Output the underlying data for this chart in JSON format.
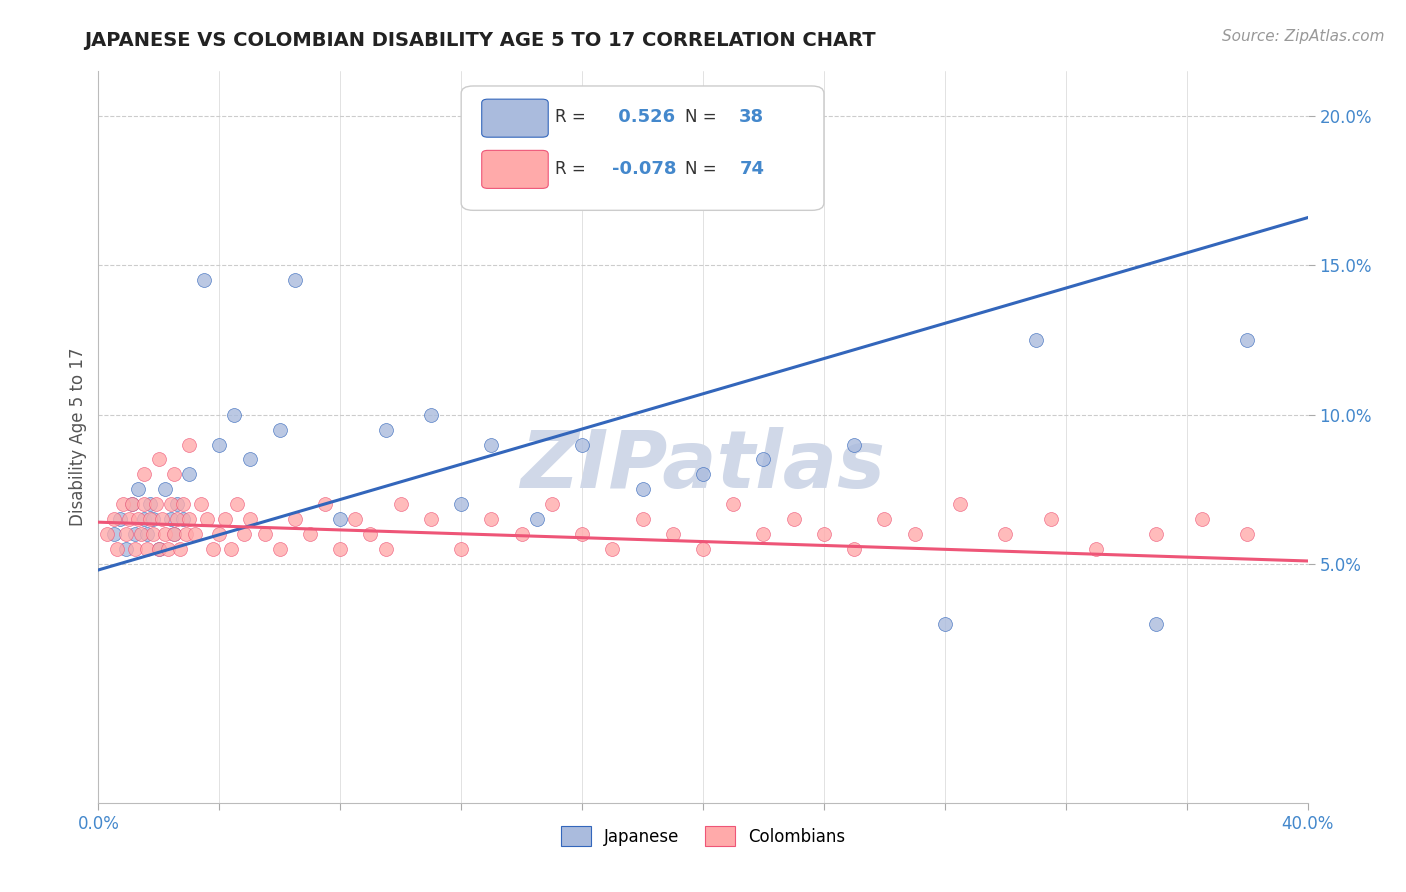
{
  "title": "JAPANESE VS COLOMBIAN DISABILITY AGE 5 TO 17 CORRELATION CHART",
  "source": "Source: ZipAtlas.com",
  "ylabel": "Disability Age 5 to 17",
  "xlim": [
    0.0,
    0.4
  ],
  "ylim": [
    -0.03,
    0.215
  ],
  "xticks": [
    0.0,
    0.04,
    0.08,
    0.12,
    0.16,
    0.2,
    0.24,
    0.28,
    0.32,
    0.36,
    0.4
  ],
  "ytick_positions": [
    0.05,
    0.1,
    0.15,
    0.2
  ],
  "ytick_labels": [
    "5.0%",
    "10.0%",
    "15.0%",
    "20.0%"
  ],
  "legend_r1": " 0.526",
  "legend_n1": "38",
  "legend_r2": "-0.078",
  "legend_n2": "74",
  "blue_scatter_color": "#aabbdd",
  "pink_scatter_color": "#ffaaaa",
  "blue_line_color": "#3366bb",
  "pink_line_color": "#ee5577",
  "watermark_text": "ZIPatlas",
  "watermark_color": "#d0d8e8",
  "japanese_x": [
    0.005,
    0.007,
    0.009,
    0.011,
    0.012,
    0.013,
    0.015,
    0.016,
    0.017,
    0.018,
    0.02,
    0.022,
    0.024,
    0.025,
    0.026,
    0.028,
    0.03,
    0.035,
    0.04,
    0.045,
    0.05,
    0.06,
    0.065,
    0.08,
    0.095,
    0.11,
    0.12,
    0.13,
    0.145,
    0.16,
    0.18,
    0.2,
    0.22,
    0.25,
    0.28,
    0.31,
    0.35,
    0.38
  ],
  "japanese_y": [
    0.06,
    0.065,
    0.055,
    0.07,
    0.06,
    0.075,
    0.065,
    0.06,
    0.07,
    0.065,
    0.055,
    0.075,
    0.065,
    0.06,
    0.07,
    0.065,
    0.08,
    0.145,
    0.09,
    0.1,
    0.085,
    0.095,
    0.145,
    0.065,
    0.095,
    0.1,
    0.07,
    0.09,
    0.065,
    0.09,
    0.075,
    0.08,
    0.085,
    0.09,
    0.03,
    0.125,
    0.03,
    0.125
  ],
  "colombian_x": [
    0.003,
    0.005,
    0.006,
    0.008,
    0.009,
    0.01,
    0.011,
    0.012,
    0.013,
    0.014,
    0.015,
    0.016,
    0.017,
    0.018,
    0.019,
    0.02,
    0.021,
    0.022,
    0.023,
    0.024,
    0.025,
    0.026,
    0.027,
    0.028,
    0.029,
    0.03,
    0.032,
    0.034,
    0.036,
    0.038,
    0.04,
    0.042,
    0.044,
    0.046,
    0.048,
    0.05,
    0.055,
    0.06,
    0.065,
    0.07,
    0.075,
    0.08,
    0.085,
    0.09,
    0.095,
    0.1,
    0.11,
    0.12,
    0.13,
    0.14,
    0.15,
    0.16,
    0.17,
    0.18,
    0.19,
    0.2,
    0.21,
    0.22,
    0.23,
    0.24,
    0.25,
    0.26,
    0.27,
    0.285,
    0.3,
    0.315,
    0.33,
    0.35,
    0.365,
    0.38,
    0.015,
    0.02,
    0.025,
    0.03
  ],
  "colombian_y": [
    0.06,
    0.065,
    0.055,
    0.07,
    0.06,
    0.065,
    0.07,
    0.055,
    0.065,
    0.06,
    0.07,
    0.055,
    0.065,
    0.06,
    0.07,
    0.055,
    0.065,
    0.06,
    0.055,
    0.07,
    0.06,
    0.065,
    0.055,
    0.07,
    0.06,
    0.065,
    0.06,
    0.07,
    0.065,
    0.055,
    0.06,
    0.065,
    0.055,
    0.07,
    0.06,
    0.065,
    0.06,
    0.055,
    0.065,
    0.06,
    0.07,
    0.055,
    0.065,
    0.06,
    0.055,
    0.07,
    0.065,
    0.055,
    0.065,
    0.06,
    0.07,
    0.06,
    0.055,
    0.065,
    0.06,
    0.055,
    0.07,
    0.06,
    0.065,
    0.06,
    0.055,
    0.065,
    0.06,
    0.07,
    0.06,
    0.065,
    0.055,
    0.06,
    0.065,
    0.06,
    0.08,
    0.085,
    0.08,
    0.09
  ],
  "blue_line_x": [
    0.0,
    0.4
  ],
  "blue_line_y": [
    0.048,
    0.166
  ],
  "pink_line_x": [
    0.0,
    0.4
  ],
  "pink_line_y": [
    0.064,
    0.051
  ],
  "grid_color": "#cccccc",
  "bg_color": "#ffffff",
  "title_color": "#222222",
  "axis_color": "#4488cc",
  "label_color": "#555555"
}
